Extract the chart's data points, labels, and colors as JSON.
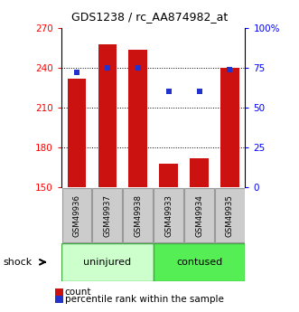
{
  "title": "GDS1238 / rc_AA874982_at",
  "samples": [
    "GSM49936",
    "GSM49937",
    "GSM49938",
    "GSM49933",
    "GSM49934",
    "GSM49935"
  ],
  "counts": [
    232,
    258,
    254,
    168,
    172,
    240
  ],
  "percentiles": [
    72,
    75,
    75,
    60,
    60,
    74
  ],
  "group_labels": [
    "uninjured",
    "contused"
  ],
  "group_colors": [
    "#ccffcc",
    "#55ee55"
  ],
  "group_edge_color": "#44aa44",
  "bar_color": "#cc1111",
  "dot_color": "#2233cc",
  "ylim_left": [
    150,
    270
  ],
  "ylim_right": [
    0,
    100
  ],
  "yticks_left": [
    150,
    180,
    210,
    240,
    270
  ],
  "yticks_right": [
    0,
    25,
    50,
    75,
    100
  ],
  "ytick_labels_right": [
    "0",
    "25",
    "50",
    "75",
    "100%"
  ],
  "grid_values": [
    180,
    210,
    240
  ],
  "sample_box_color": "#cccccc",
  "sample_box_edge": "#999999",
  "shock_label": "shock",
  "legend_count": "count",
  "legend_percentile": "percentile rank within the sample"
}
